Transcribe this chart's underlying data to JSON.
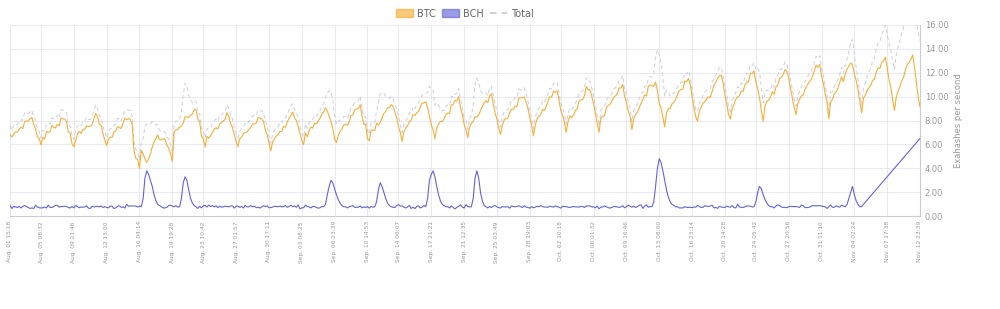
{
  "title": "",
  "ylabel": "Exahashes per second",
  "ylim": [
    0,
    16.0
  ],
  "yticks": [
    0,
    2,
    4,
    6,
    8,
    10,
    12,
    14,
    16
  ],
  "legend_labels": [
    "BTC",
    "BCH",
    "Total"
  ],
  "btc_color": "#f5a623",
  "bch_color": "#5b5bd6",
  "total_color": "#c8c8d8",
  "bg_color": "#ffffff",
  "grid_color": "#e0e0ec",
  "x_labels": [
    "Aug. 01 15:18",
    "Aug. 05 08:32",
    "Aug. 09 21:46",
    "Aug. 12 13:00",
    "Aug. 16 04:14",
    "Aug. 19 19:28",
    "Aug. 23 10:42",
    "Aug. 27 01:57",
    "Aug. 30 17:11",
    "Sep. 03 08:25",
    "Sep. 06 23:39",
    "Sep. 10 14:53",
    "Sep. 14 06:07",
    "Sep. 17 21:21",
    "Sep. 21 12:35",
    "Sep. 25 03:49",
    "Sep. 28 19:03",
    "Oct. 02 10:18",
    "Oct. 06 01:32",
    "Oct. 09 16:46",
    "Oct. 13 08:00",
    "Oct. 16 23:14",
    "Oct. 20 14:28",
    "Oct. 24 05:42",
    "Oct. 27 20:56",
    "Oct. 31 11:10",
    "Nov. 04 02:24",
    "Nov. 07 17:38",
    "Nov. 12 23:39"
  ]
}
